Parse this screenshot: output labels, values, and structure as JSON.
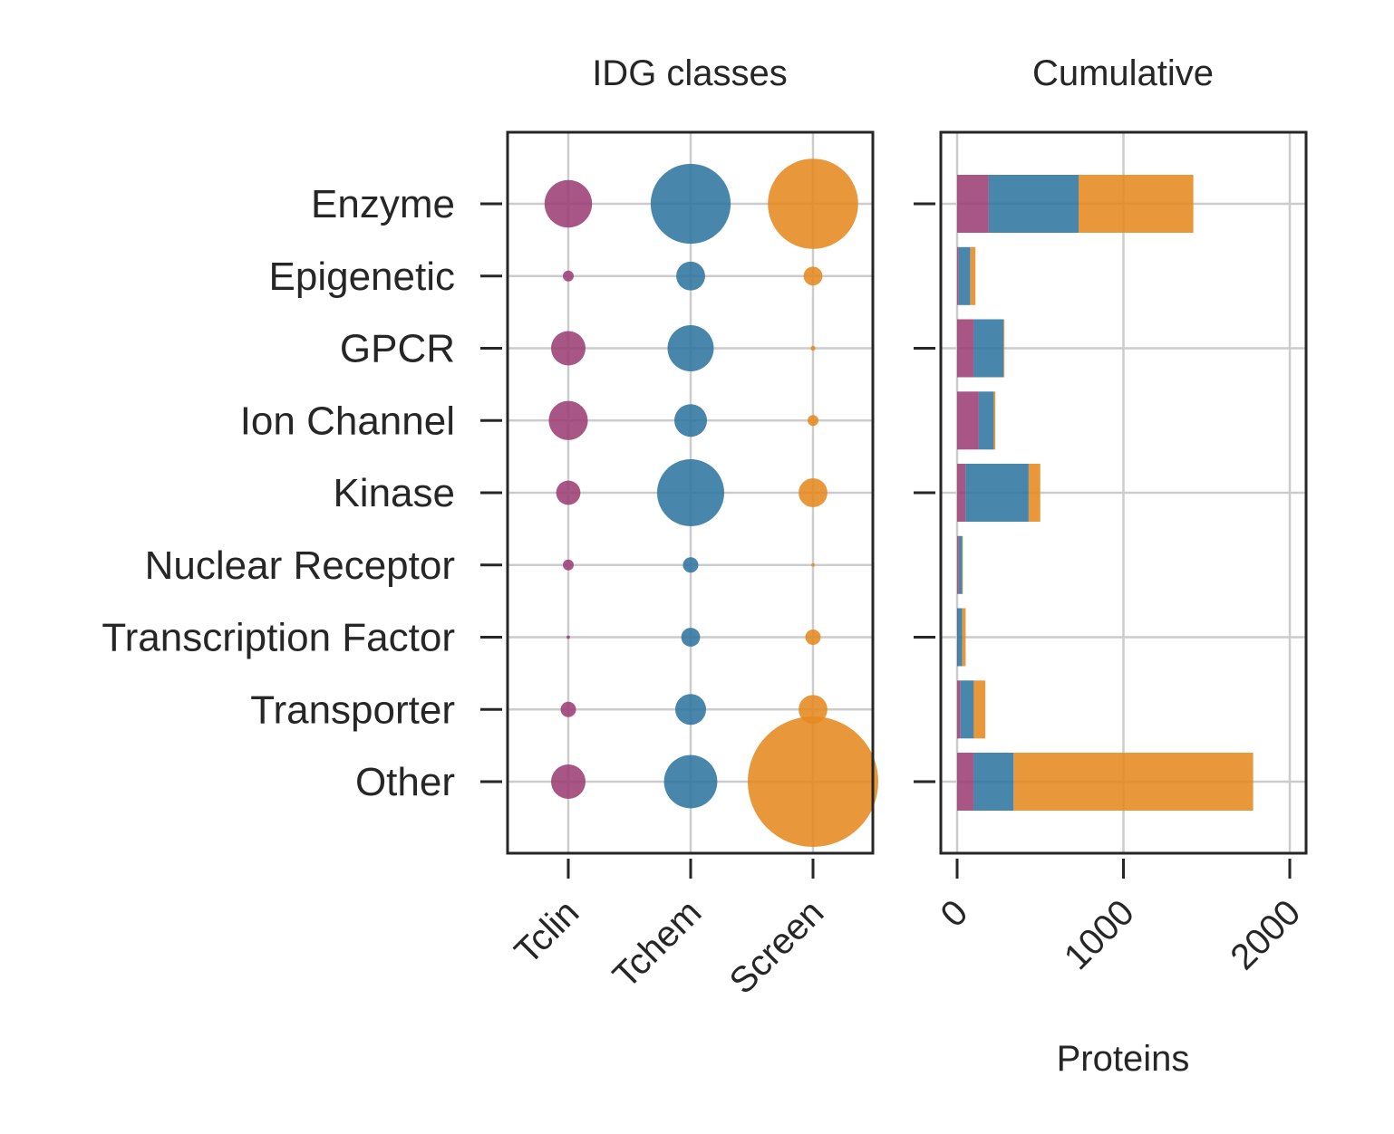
{
  "chart_data": [
    {
      "type": "scatter",
      "title": "IDG classes",
      "categories_x": [
        "Tclin",
        "Tchem",
        "Screen"
      ],
      "categories_y": [
        "Enzyme",
        "Epigenetic",
        "GPCR",
        "Ion Channel",
        "Kinase",
        "Nuclear Receptor",
        "Transcription Factor",
        "Transporter",
        "Other"
      ],
      "grid": true,
      "series": [
        {
          "x": "Tclin",
          "color": "#9b3f74",
          "values": [
            190,
            10,
            100,
            130,
            50,
            10,
            1,
            20,
            100
          ]
        },
        {
          "x": "Tchem",
          "color": "#2f75a1",
          "values": [
            540,
            70,
            180,
            90,
            380,
            20,
            30,
            80,
            240
          ]
        },
        {
          "x": "Screen",
          "color": "#e58a1f",
          "values": [
            690,
            30,
            2,
            10,
            70,
            1,
            20,
            70,
            1440
          ]
        }
      ]
    },
    {
      "type": "bar",
      "orientation": "horizontal",
      "stacked": true,
      "title": "Cumulative",
      "xlabel": "Proteins",
      "xlim": [
        -90,
        2090
      ],
      "xticks": [
        "0",
        "1000",
        "2000"
      ],
      "categories": [
        "Enzyme",
        "Epigenetic",
        "GPCR",
        "Ion Channel",
        "Kinase",
        "Nuclear Receptor",
        "Transcription Factor",
        "Transporter",
        "Other"
      ],
      "grid": true,
      "series": [
        {
          "label": "Tclin",
          "color": "#9b3f74",
          "values": [
            190,
            10,
            100,
            130,
            50,
            10,
            1,
            20,
            100
          ]
        },
        {
          "label": "Tchem",
          "color": "#2f75a1",
          "values": [
            540,
            70,
            180,
            90,
            380,
            20,
            30,
            80,
            240
          ]
        },
        {
          "label": "Screen",
          "color": "#e58a1f",
          "values": [
            690,
            30,
            2,
            10,
            70,
            1,
            20,
            70,
            1440
          ]
        }
      ]
    }
  ]
}
